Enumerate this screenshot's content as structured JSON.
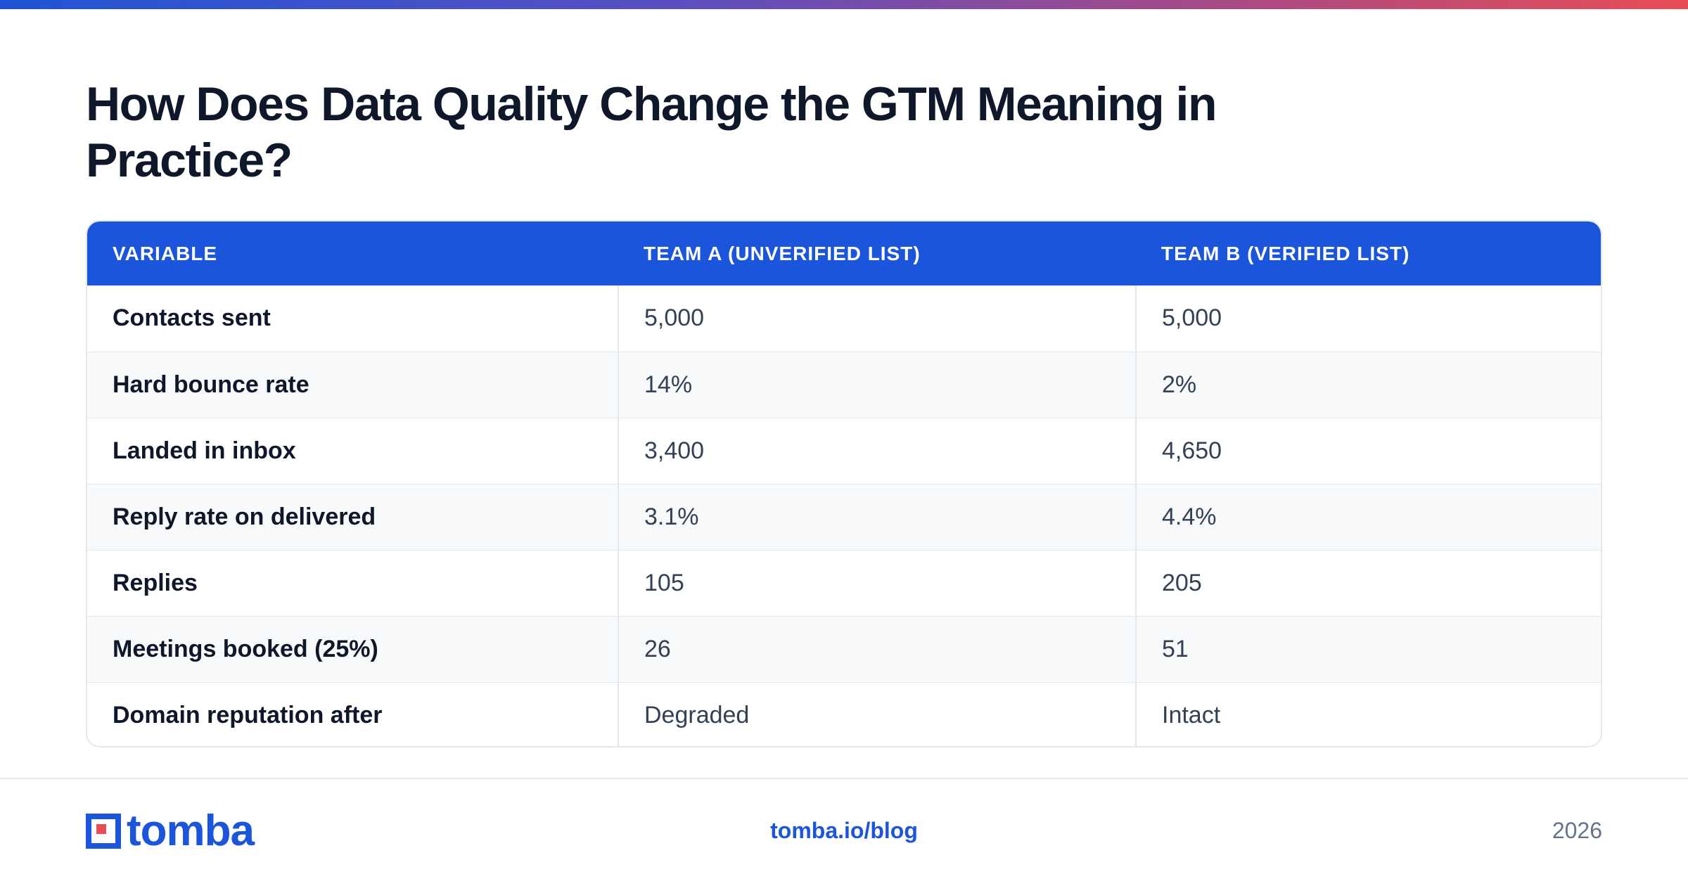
{
  "title": "How Does Data Quality Change the GTM Meaning in Practice?",
  "table": {
    "headers": [
      "VARIABLE",
      "TEAM A (UNVERIFIED LIST)",
      "TEAM B (VERIFIED LIST)"
    ],
    "rows": [
      [
        "Contacts sent",
        "5,000",
        "5,000"
      ],
      [
        "Hard bounce rate",
        "14%",
        "2%"
      ],
      [
        "Landed in inbox",
        "3,400",
        "4,650"
      ],
      [
        "Reply rate on delivered",
        "3.1%",
        "4.4%"
      ],
      [
        "Replies",
        "105",
        "205"
      ],
      [
        "Meetings booked (25%)",
        "26",
        "51"
      ],
      [
        "Domain reputation after",
        "Degraded",
        "Intact"
      ]
    ]
  },
  "footer": {
    "logo_text": "tomba",
    "link": "tomba.io/blog",
    "year": "2026"
  },
  "colors": {
    "accent": "#1b55db",
    "title": "#0f172a",
    "logo_red": "#e84d55"
  }
}
